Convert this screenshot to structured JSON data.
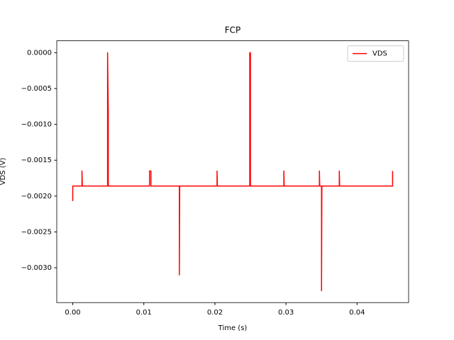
{
  "chart_data": {
    "type": "line",
    "title": "FCP",
    "xlabel": "Time (s)",
    "ylabel": "VDS (V)",
    "x": [
      0,
      0,
      0.0013,
      0.0013,
      0.00135,
      0.0049,
      0.0049,
      0.005,
      0.005,
      0.0108,
      0.0108,
      0.011,
      0.011,
      0.015,
      0.015,
      0.01505,
      0.0203,
      0.0203,
      0.02035,
      0.0249,
      0.0249,
      0.025,
      0.025,
      0.0297,
      0.0297,
      0.02975,
      0.0347,
      0.0347,
      0.03475,
      0.035,
      0.035,
      0.03505,
      0.0375,
      0.0375,
      0.03755,
      0.045,
      0.045
    ],
    "series": [
      {
        "name": "VDS",
        "color": "#ff0000",
        "values": [
          -0.00207,
          -0.00186,
          -0.00186,
          -0.00165,
          -0.00186,
          -0.00186,
          0.0,
          -0.00083,
          -0.00186,
          -0.00186,
          -0.00165,
          -0.00165,
          -0.00186,
          -0.00186,
          -0.0031,
          -0.00186,
          -0.00186,
          -0.00165,
          -0.00186,
          -0.00186,
          0.0,
          0.0,
          -0.00186,
          -0.00186,
          -0.00165,
          -0.00186,
          -0.00186,
          -0.00165,
          -0.00186,
          -0.00186,
          -0.00332,
          -0.00186,
          -0.00186,
          -0.00165,
          -0.00186,
          -0.00186,
          -0.00165
        ]
      }
    ],
    "xlim": [
      -0.00225,
      0.04725
    ],
    "xticks": [
      {
        "value": 0,
        "label": "0.00"
      },
      {
        "value": 0.01,
        "label": "0.01"
      },
      {
        "value": 0.02,
        "label": "0.02"
      },
      {
        "value": 0.03,
        "label": "0.03"
      },
      {
        "value": 0.04,
        "label": "0.04"
      }
    ],
    "ylim": [
      -0.003486,
      0.000166
    ],
    "yticks": [
      {
        "value": 0,
        "label": "0.0000"
      },
      {
        "value": -0.0005,
        "label": "−0.0005"
      },
      {
        "value": -0.001,
        "label": "−0.0010"
      },
      {
        "value": -0.0015,
        "label": "−0.0015"
      },
      {
        "value": -0.002,
        "label": "−0.0020"
      },
      {
        "value": -0.0025,
        "label": "−0.0025"
      },
      {
        "value": -0.003,
        "label": "−0.0030"
      }
    ],
    "legend": "upper right",
    "grid": false
  }
}
